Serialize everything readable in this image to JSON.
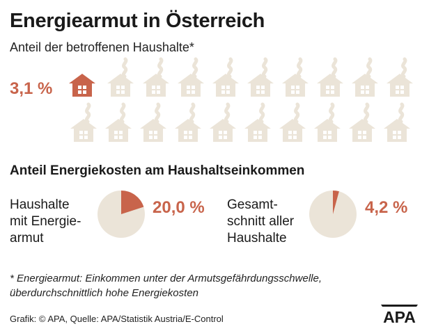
{
  "title": "Energiearmut in Österreich",
  "subtitle": "Anteil der betroffenen Haushalte*",
  "households_share_label": "3,1 %",
  "section_title": "Anteil Energiekosten am Haushaltseinkommen",
  "colors": {
    "accent": "#c8644b",
    "muted": "#ebe4d8",
    "text": "#1a1a1a"
  },
  "chart_data": [
    {
      "type": "pictogram",
      "title": "Anteil der betroffenen Haushalte*",
      "value_percent": 3.1,
      "value_label": "3,1 %",
      "total_icons": 20,
      "highlighted_icons": 1,
      "icon": "house-icon"
    },
    {
      "type": "pie",
      "category": "Haushalte mit Energiearmut",
      "label_lines": [
        "Haushalte",
        "mit Energie-",
        "armut"
      ],
      "value_percent": 20.0,
      "value_label": "20,0 %"
    },
    {
      "type": "pie",
      "category": "Gesamtschnitt aller Haushalte",
      "label_lines": [
        "Gesamt-",
        "schnitt aller",
        "Haushalte"
      ],
      "value_percent": 4.2,
      "value_label": "4,2 %"
    }
  ],
  "footnote": [
    "* Energiearmut: Einkommen unter der Armutsgefährdungsschwelle,",
    "überdurchschnittlich hohe Energiekosten"
  ],
  "source": "Grafik: © APA, Quelle: APA/Statistik Austria/E-Control",
  "logo_text": "APA"
}
